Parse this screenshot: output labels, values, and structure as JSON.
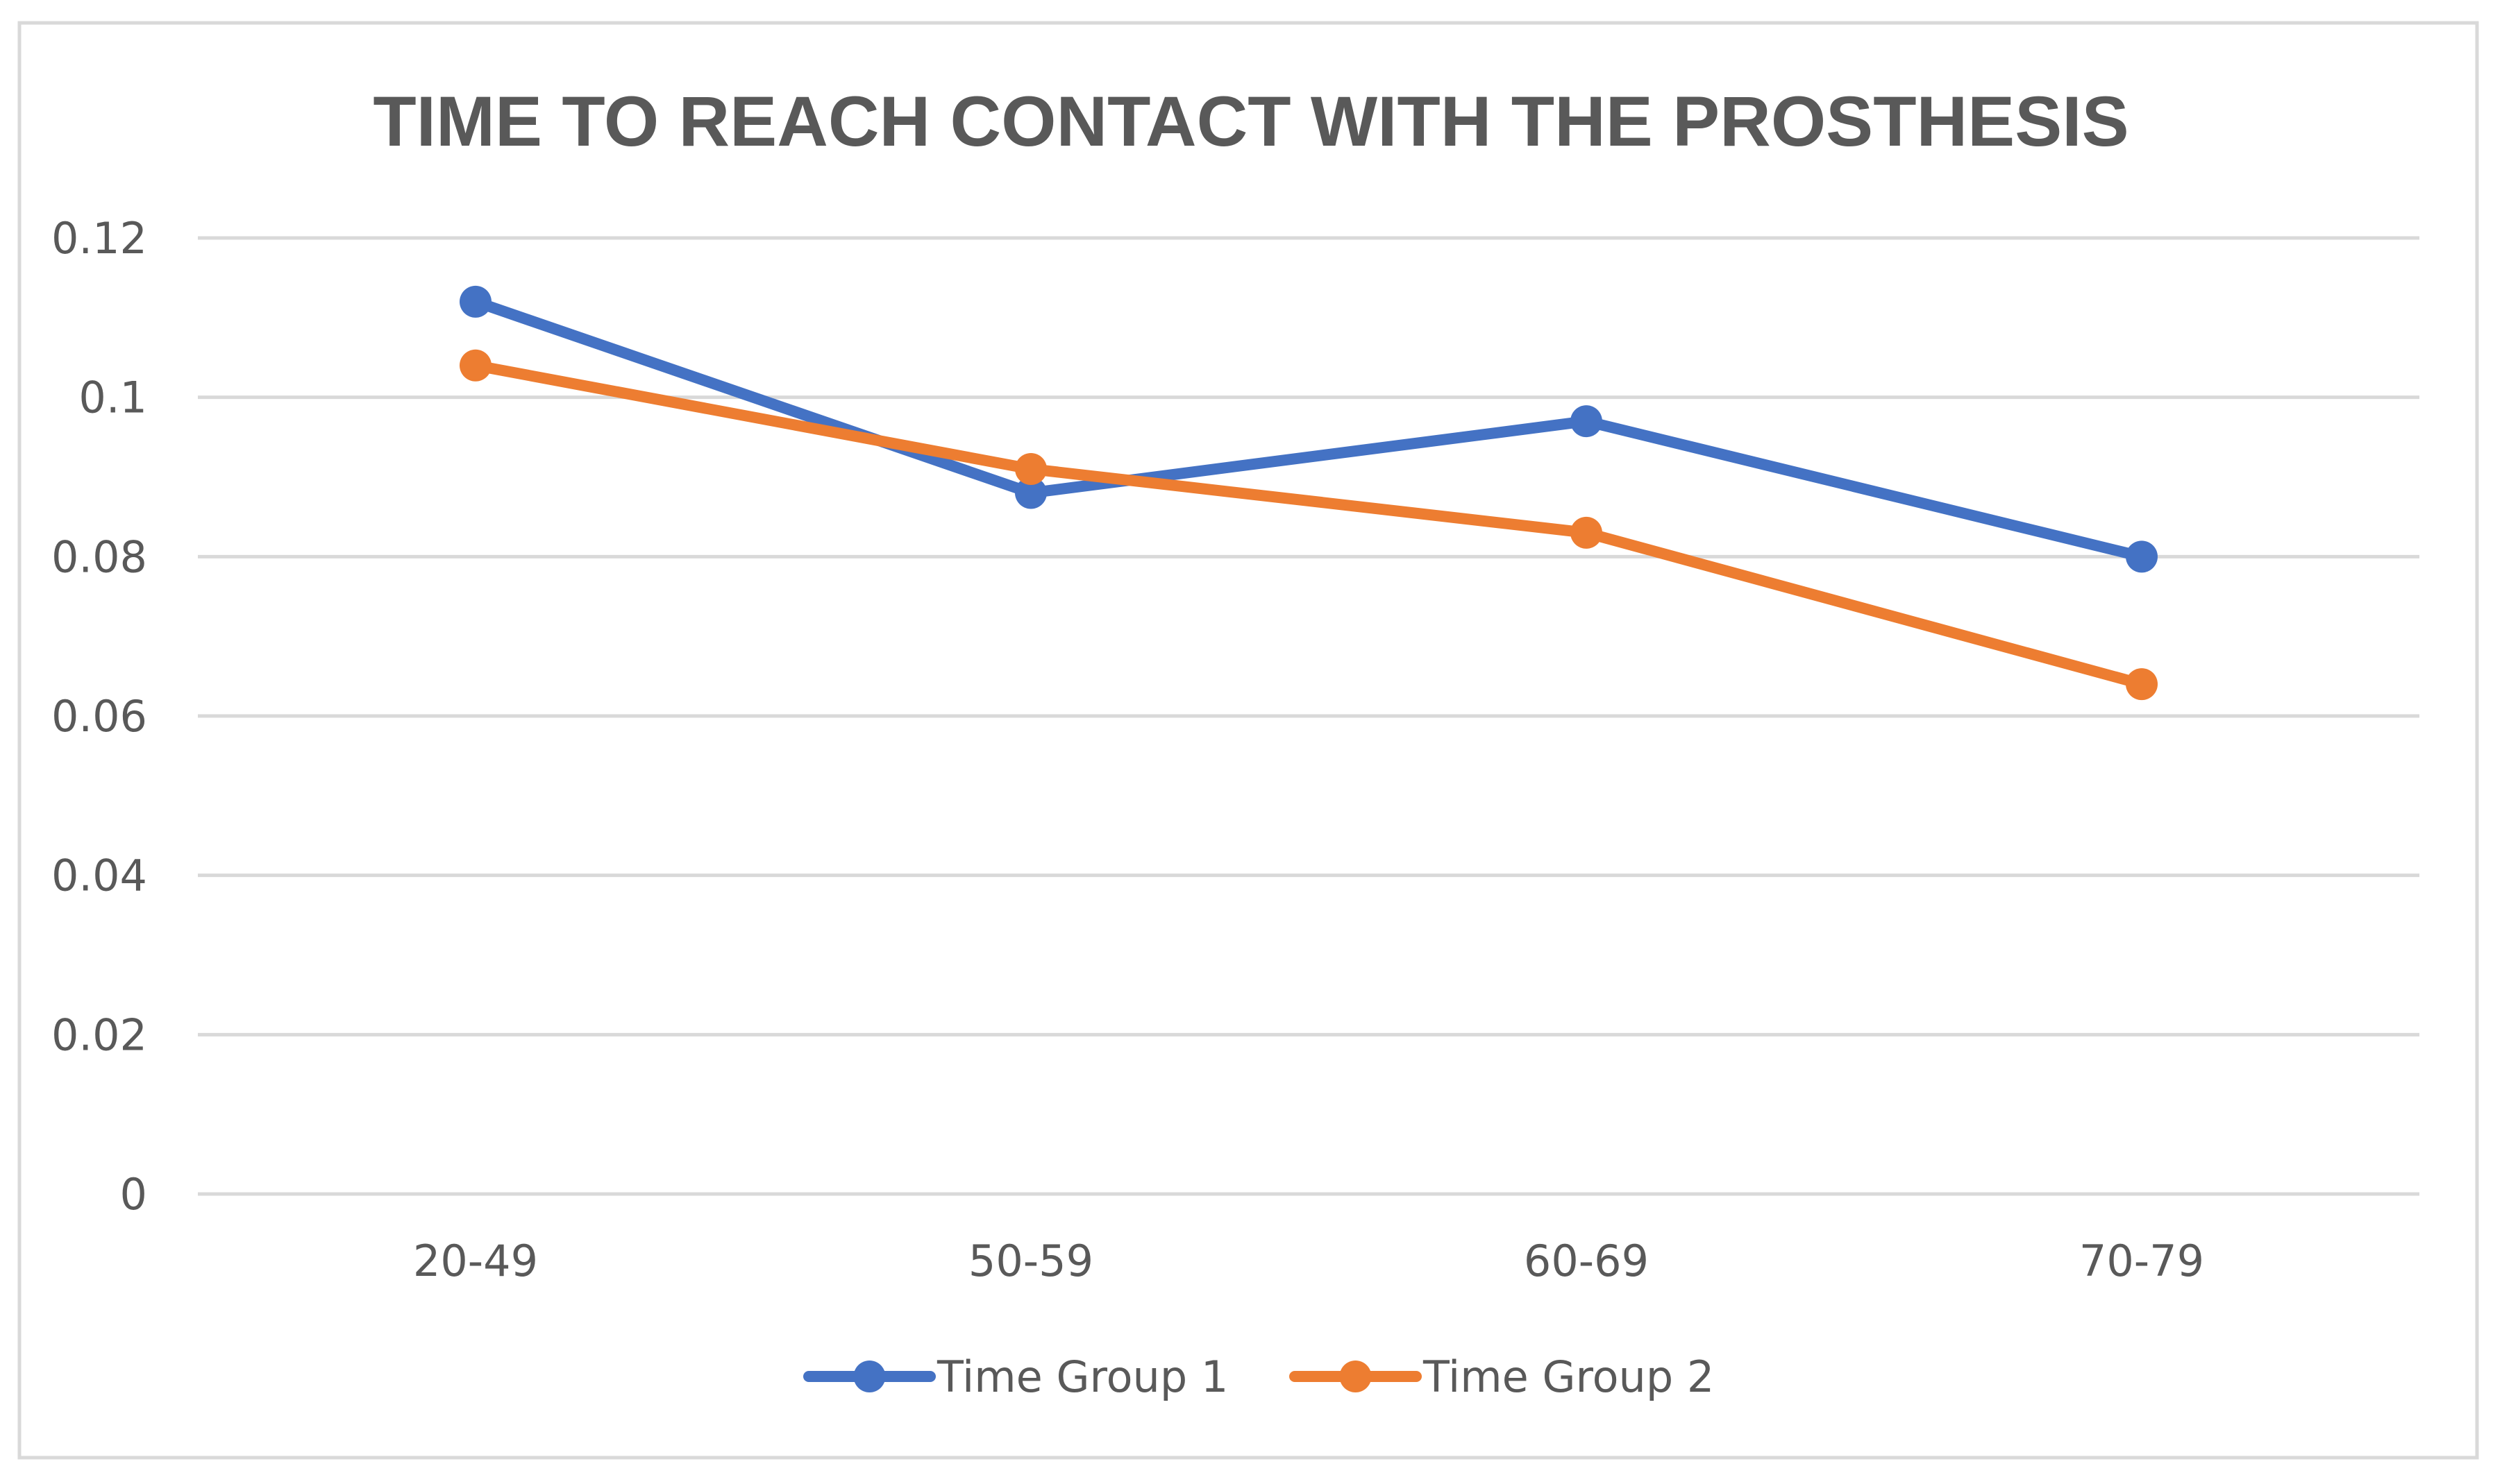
{
  "chart_data": {
    "type": "line",
    "title": "TIME TO REACH CONTACT WITH THE PROSTHESIS",
    "xlabel": "",
    "ylabel": "",
    "categories": [
      "20-49",
      "50-59",
      "60-69",
      "70-79"
    ],
    "ylim": [
      0,
      0.12
    ],
    "yticks": [
      0,
      0.02,
      0.04,
      0.06,
      0.08,
      0.1,
      0.12
    ],
    "ytick_labels": [
      "0",
      "0.02",
      "0.04",
      "0.06",
      "0.08",
      "0.1",
      "0.12"
    ],
    "grid": true,
    "legend_position": "bottom",
    "series": [
      {
        "name": "Time Group 1",
        "values": [
          0.112,
          0.088,
          0.097,
          0.08
        ],
        "color": "#4472c4"
      },
      {
        "name": "Time Group 2",
        "values": [
          0.104,
          0.091,
          0.083,
          0.064
        ],
        "color": "#ed7d31"
      }
    ]
  }
}
